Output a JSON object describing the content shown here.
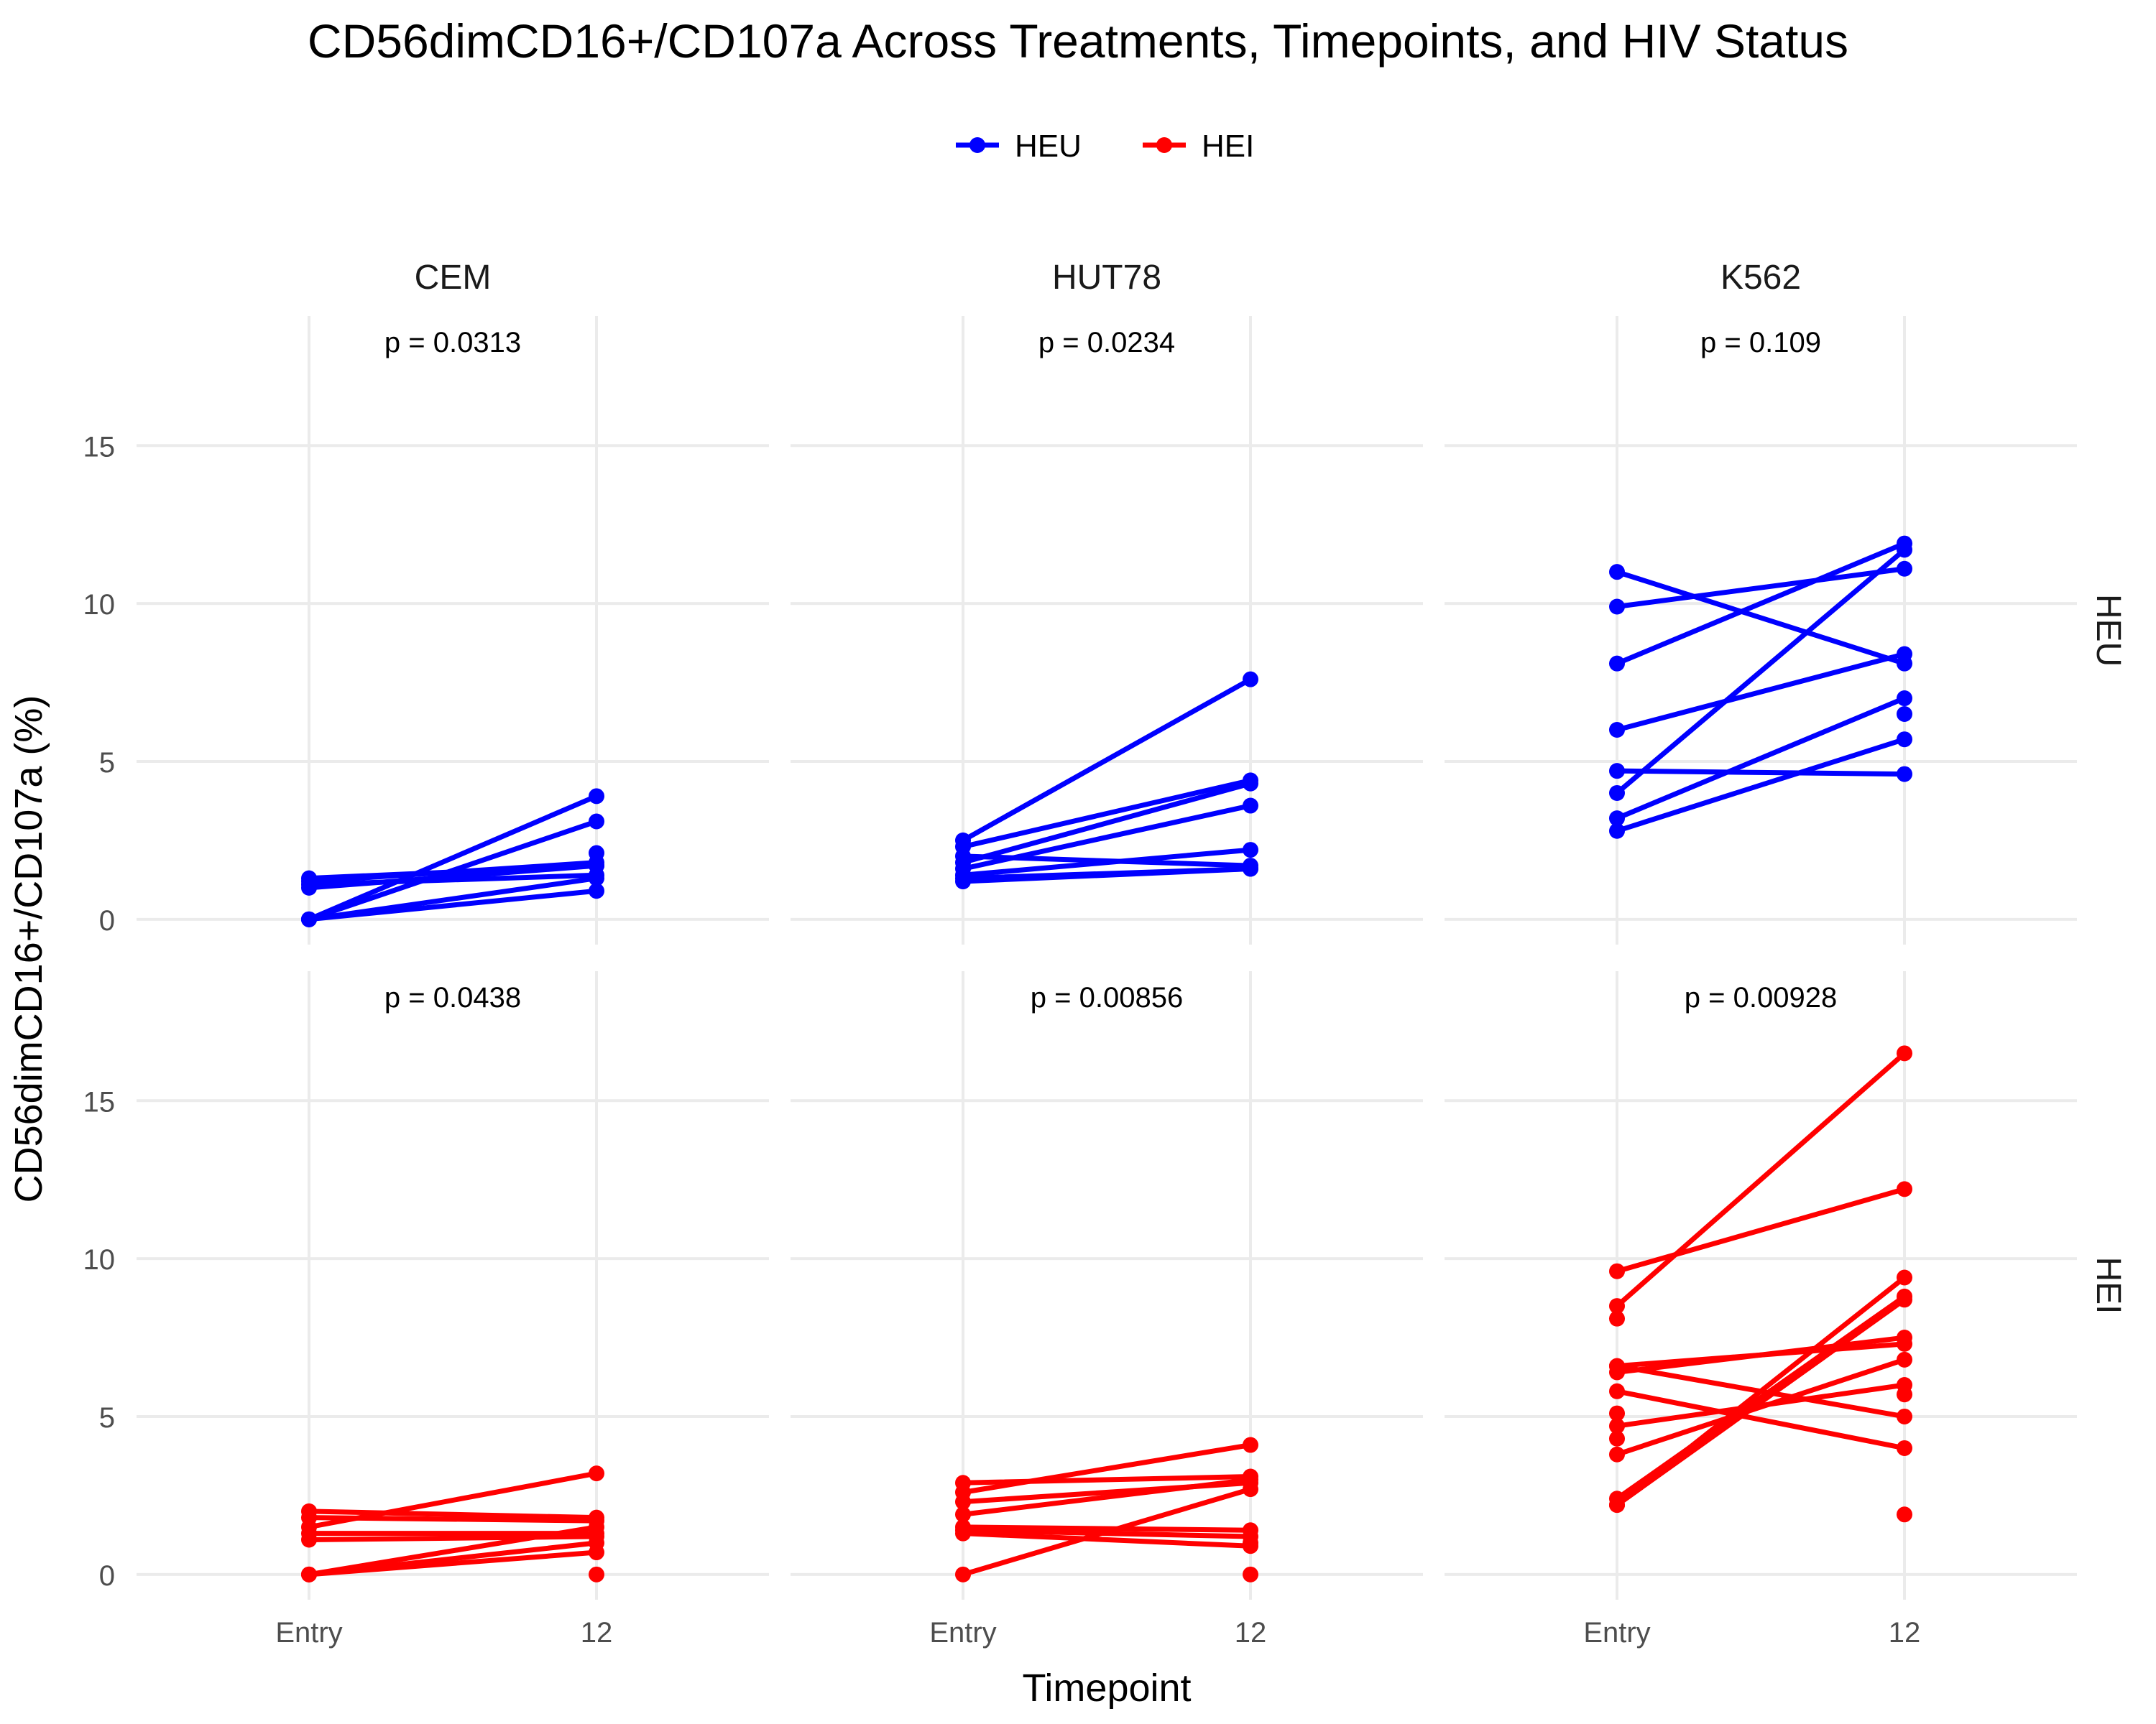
{
  "chart_data": {
    "type": "line",
    "title": "CD56dimCD16+/CD107a Across Treatments, Timepoints, and HIV Status",
    "xlabel": "Timepoint",
    "ylabel": "CD56dimCD16+/CD107a (%)",
    "x_categories": [
      "Entry",
      "12"
    ],
    "ylim": [
      -0.8,
      19.1
    ],
    "y_ticks": [
      0,
      5,
      10,
      15
    ],
    "grid": true,
    "legend": {
      "position": "top-center",
      "entries": [
        {
          "name": "HEU",
          "color": "#0000ff"
        },
        {
          "name": "HEI",
          "color": "#ff0000"
        }
      ]
    },
    "col_facets": [
      "CEM",
      "HUT78",
      "K562"
    ],
    "row_facets": [
      {
        "name": "HEU",
        "color": "#0000ff"
      },
      {
        "name": "HEI",
        "color": "#ff0000"
      }
    ],
    "panels": [
      {
        "row": "HEU",
        "col": "CEM",
        "p_label": "p = 0.0313",
        "pairs": [
          [
            1.3,
            1.7
          ],
          [
            1.2,
            1.8
          ],
          [
            1.0,
            1.7
          ],
          [
            1.1,
            1.4
          ],
          [
            0.0,
            3.9
          ],
          [
            0.0,
            3.1
          ],
          [
            0.0,
            0.9
          ],
          [
            0.0,
            1.3
          ]
        ],
        "extra_points": [
          [
            1,
            2.1
          ]
        ]
      },
      {
        "row": "HEU",
        "col": "HUT78",
        "p_label": "p = 0.0234",
        "pairs": [
          [
            2.5,
            7.6
          ],
          [
            2.3,
            4.4
          ],
          [
            1.8,
            4.3
          ],
          [
            1.6,
            3.6
          ],
          [
            1.4,
            2.2
          ],
          [
            1.2,
            1.6
          ],
          [
            1.3,
            1.6
          ],
          [
            2.0,
            1.7
          ]
        ],
        "extra_points": []
      },
      {
        "row": "HEU",
        "col": "K562",
        "p_label": "p = 0.109",
        "pairs": [
          [
            11.0,
            8.1
          ],
          [
            9.9,
            11.1
          ],
          [
            8.1,
            11.9
          ],
          [
            6.0,
            8.4
          ],
          [
            4.7,
            4.6
          ],
          [
            4.0,
            11.7
          ],
          [
            3.2,
            7.0
          ],
          [
            2.8,
            5.7
          ]
        ],
        "extra_points": [
          [
            1,
            6.5
          ]
        ]
      },
      {
        "row": "HEI",
        "col": "CEM",
        "p_label": "p = 0.0438",
        "pairs": [
          [
            2.0,
            1.8
          ],
          [
            1.8,
            1.7
          ],
          [
            1.5,
            3.2
          ],
          [
            1.3,
            1.3
          ],
          [
            1.1,
            1.2
          ],
          [
            0.0,
            1.5
          ],
          [
            0.0,
            1.0
          ],
          [
            0.0,
            0.7
          ]
        ],
        "extra_points": [
          [
            1,
            0.0
          ]
        ]
      },
      {
        "row": "HEI",
        "col": "HUT78",
        "p_label": "p = 0.00856",
        "pairs": [
          [
            2.9,
            3.1
          ],
          [
            2.6,
            4.1
          ],
          [
            2.3,
            2.9
          ],
          [
            1.9,
            3.0
          ],
          [
            1.5,
            1.4
          ],
          [
            1.4,
            1.2
          ],
          [
            1.3,
            0.9
          ],
          [
            0.0,
            2.7
          ]
        ],
        "extra_points": [
          [
            1,
            0.0
          ],
          [
            1,
            1.0
          ]
        ]
      },
      {
        "row": "HEI",
        "col": "K562",
        "p_label": "p = 0.00928",
        "pairs": [
          [
            9.6,
            12.2
          ],
          [
            8.5,
            16.5
          ],
          [
            6.6,
            7.3
          ],
          [
            6.6,
            5.0
          ],
          [
            6.4,
            7.5
          ],
          [
            5.8,
            4.0
          ],
          [
            4.7,
            6.0
          ],
          [
            3.8,
            6.8
          ],
          [
            2.4,
            8.8
          ],
          [
            2.2,
            9.4
          ],
          [
            2.2,
            8.7
          ]
        ],
        "extra_points": [
          [
            0,
            8.1
          ],
          [
            0,
            5.1
          ],
          [
            0,
            4.3
          ],
          [
            1,
            1.9
          ],
          [
            1,
            5.7
          ]
        ]
      }
    ]
  }
}
